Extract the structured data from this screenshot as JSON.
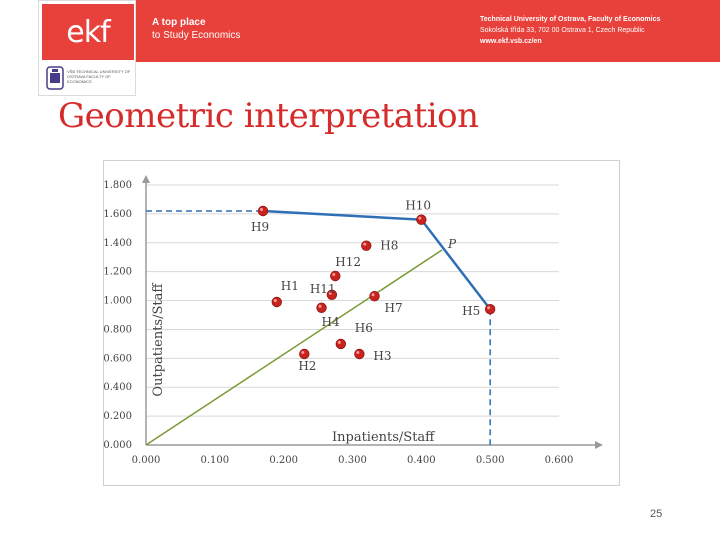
{
  "header": {
    "logo_text": "ekf",
    "tagline_line1": "A top place",
    "tagline_line2": "to Study Economics",
    "address_line1": "Technical University of Ostrava, Faculty of Economics",
    "address_line2": "Sokolská třída 33, 702 00 Ostrava 1, Czech Republic",
    "address_line3": "www.ekf.vsb.cz/en",
    "uni_logo_text": "VŠB TECHNICAL UNIVERSITY OF OSTRAVA FACULTY OF ECONOMICS",
    "brand_color": "#e8403a"
  },
  "slide": {
    "title": "Geometric interpretation",
    "page_number": "25"
  },
  "chart_data": {
    "type": "scatter",
    "title": "",
    "xlabel": "Inpatients/Staff",
    "ylabel": "Outpatients/Staff",
    "xlim": [
      0,
      0.6
    ],
    "ylim": [
      0,
      1.8
    ],
    "x_ticks": [
      "0.000",
      "0.100",
      "0.200",
      "0.300",
      "0.400",
      "0.500",
      "0.600"
    ],
    "y_ticks": [
      "0.000",
      "0.200",
      "0.400",
      "0.600",
      "0.800",
      "1.000",
      "1.200",
      "1.400",
      "1.600",
      "1.800"
    ],
    "grid": "horizontal",
    "points": [
      {
        "name": "H1",
        "x": 0.19,
        "y": 0.99
      },
      {
        "name": "H2",
        "x": 0.23,
        "y": 0.63
      },
      {
        "name": "H3",
        "x": 0.31,
        "y": 0.63
      },
      {
        "name": "H4",
        "x": 0.255,
        "y": 0.95
      },
      {
        "name": "H5",
        "x": 0.5,
        "y": 0.94
      },
      {
        "name": "H6",
        "x": 0.283,
        "y": 0.7
      },
      {
        "name": "H7",
        "x": 0.332,
        "y": 1.03
      },
      {
        "name": "H8",
        "x": 0.32,
        "y": 1.38
      },
      {
        "name": "H9",
        "x": 0.17,
        "y": 1.62
      },
      {
        "name": "H10",
        "x": 0.4,
        "y": 1.56
      },
      {
        "name": "H11",
        "x": 0.27,
        "y": 1.04
      },
      {
        "name": "H12",
        "x": 0.275,
        "y": 1.17
      }
    ],
    "frontier": [
      {
        "x": 0.17,
        "y": 1.62
      },
      {
        "x": 0.4,
        "y": 1.56
      },
      {
        "x": 0.5,
        "y": 0.94
      }
    ],
    "ray_end": {
      "x": 0.43,
      "y": 1.35
    },
    "ray_label": "P",
    "colors": {
      "frontier": "#2e6fb5",
      "ray": "#7a9a35",
      "point": "#c8231f",
      "grid": "#d8d8d8",
      "axis": "#9a9a9a"
    }
  }
}
